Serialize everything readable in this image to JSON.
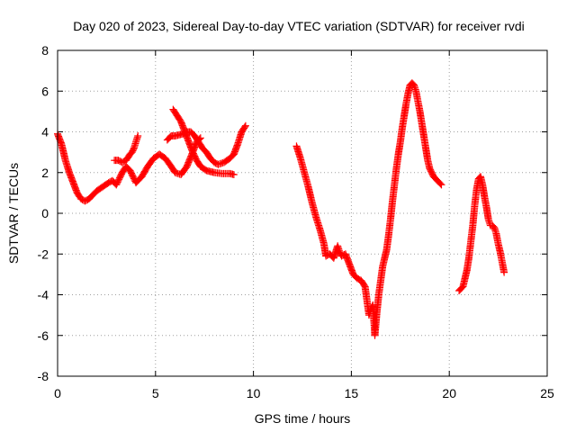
{
  "chart_data": {
    "type": "scatter",
    "title": "Day 020 of 2023, Sidereal Day-to-day VTEC variation (SDTVAR) for receiver rvdi",
    "xlabel": "GPS time / hours",
    "ylabel": "SDTVAR / TECUs",
    "xlim": [
      0,
      25
    ],
    "ylim": [
      -8,
      8
    ],
    "xticks": [
      "0",
      "5",
      "10",
      "15",
      "20",
      "25"
    ],
    "yticks": [
      "-8",
      "-6",
      "-4",
      "-2",
      "0",
      "2",
      "4",
      "6",
      "8"
    ],
    "grid": true,
    "marker_color": "#ff0000",
    "series": [
      {
        "points": [
          [
            0,
            3.9
          ],
          [
            0.2,
            3.4
          ],
          [
            0.4,
            2.6
          ],
          [
            0.6,
            2.0
          ],
          [
            0.8,
            1.5
          ],
          [
            1.0,
            1.0
          ],
          [
            1.2,
            0.7
          ],
          [
            1.4,
            0.6
          ],
          [
            1.6,
            0.7
          ],
          [
            1.8,
            0.9
          ],
          [
            2.0,
            1.1
          ],
          [
            2.3,
            1.3
          ],
          [
            2.6,
            1.5
          ],
          [
            2.8,
            1.6
          ],
          [
            3.0,
            1.4
          ],
          [
            3.1,
            1.6
          ],
          [
            3.3,
            2.0
          ],
          [
            3.5,
            2.3
          ],
          [
            3.7,
            2.1
          ],
          [
            3.9,
            1.7
          ],
          [
            4.0,
            1.5
          ],
          [
            4.3,
            1.8
          ],
          [
            4.6,
            2.3
          ],
          [
            4.9,
            2.7
          ],
          [
            5.2,
            2.9
          ],
          [
            5.5,
            2.7
          ],
          [
            5.8,
            2.3
          ],
          [
            6.0,
            2.0
          ],
          [
            6.3,
            1.9
          ],
          [
            6.6,
            2.3
          ],
          [
            6.9,
            3.0
          ],
          [
            7.1,
            3.5
          ],
          [
            7.3,
            3.7
          ]
        ]
      },
      {
        "points": [
          [
            2.9,
            2.6
          ],
          [
            3.1,
            2.6
          ],
          [
            3.3,
            2.5
          ],
          [
            3.5,
            2.6
          ],
          [
            3.7,
            2.9
          ],
          [
            3.8,
            3.0
          ],
          [
            3.9,
            3.2
          ],
          [
            4.0,
            3.5
          ],
          [
            4.1,
            3.8
          ]
        ]
      },
      {
        "points": [
          [
            5.9,
            5.1
          ],
          [
            6.1,
            4.8
          ],
          [
            6.3,
            4.5
          ],
          [
            6.5,
            4.0
          ],
          [
            6.7,
            3.5
          ],
          [
            6.9,
            3.0
          ],
          [
            7.1,
            2.6
          ],
          [
            7.3,
            2.3
          ],
          [
            7.6,
            2.1
          ],
          [
            8.0,
            2.0
          ],
          [
            8.4,
            1.95
          ],
          [
            8.8,
            1.95
          ],
          [
            9.0,
            1.9
          ]
        ]
      },
      {
        "points": [
          [
            5.6,
            3.6
          ],
          [
            5.8,
            3.8
          ],
          [
            6.0,
            3.8
          ],
          [
            6.2,
            3.85
          ],
          [
            6.4,
            3.9
          ],
          [
            6.6,
            4.0
          ],
          [
            6.8,
            4.0
          ],
          [
            7.0,
            3.8
          ],
          [
            7.2,
            3.5
          ],
          [
            7.4,
            3.2
          ],
          [
            7.6,
            3.0
          ],
          [
            7.8,
            2.7
          ],
          [
            8.0,
            2.5
          ],
          [
            8.2,
            2.4
          ],
          [
            8.5,
            2.5
          ],
          [
            8.8,
            2.7
          ],
          [
            9.0,
            2.9
          ],
          [
            9.2,
            3.4
          ],
          [
            9.4,
            4.0
          ],
          [
            9.6,
            4.3
          ]
        ]
      },
      {
        "points": [
          [
            12.2,
            3.3
          ],
          [
            12.4,
            2.7
          ],
          [
            12.6,
            2.0
          ],
          [
            12.8,
            1.3
          ],
          [
            13.0,
            0.5
          ],
          [
            13.2,
            -0.2
          ],
          [
            13.4,
            -0.8
          ],
          [
            13.6,
            -1.5
          ],
          [
            13.7,
            -2.1
          ],
          [
            13.9,
            -2.0
          ],
          [
            14.1,
            -2.2
          ],
          [
            14.3,
            -1.6
          ],
          [
            14.4,
            -1.9
          ],
          [
            14.5,
            -2.1
          ],
          [
            14.7,
            -2.0
          ],
          [
            14.9,
            -2.5
          ],
          [
            15.1,
            -3.0
          ],
          [
            15.3,
            -3.2
          ],
          [
            15.5,
            -3.3
          ],
          [
            15.7,
            -3.6
          ],
          [
            15.8,
            -4.3
          ],
          [
            15.9,
            -5.0
          ],
          [
            16.0,
            -4.7
          ],
          [
            16.1,
            -4.5
          ],
          [
            16.2,
            -6.0
          ],
          [
            16.3,
            -4.9
          ],
          [
            16.4,
            -4.0
          ],
          [
            16.5,
            -3.3
          ],
          [
            16.6,
            -2.6
          ],
          [
            16.8,
            -1.8
          ],
          [
            16.9,
            -1.1
          ],
          [
            17.0,
            -0.3
          ],
          [
            17.1,
            0.6
          ],
          [
            17.2,
            1.4
          ],
          [
            17.3,
            2.2
          ],
          [
            17.4,
            2.9
          ],
          [
            17.5,
            3.5
          ],
          [
            17.6,
            4.2
          ],
          [
            17.7,
            4.8
          ],
          [
            17.8,
            5.4
          ],
          [
            17.9,
            5.9
          ],
          [
            18.0,
            6.3
          ],
          [
            18.1,
            6.4
          ],
          [
            18.2,
            6.3
          ],
          [
            18.3,
            6.0
          ],
          [
            18.4,
            5.5
          ],
          [
            18.5,
            5.0
          ],
          [
            18.6,
            4.4
          ],
          [
            18.7,
            3.8
          ],
          [
            18.8,
            3.2
          ],
          [
            18.9,
            2.6
          ],
          [
            19.0,
            2.2
          ],
          [
            19.2,
            1.8
          ],
          [
            19.4,
            1.6
          ],
          [
            19.6,
            1.4
          ]
        ]
      },
      {
        "points": [
          [
            20.5,
            -3.8
          ],
          [
            20.7,
            -3.6
          ],
          [
            20.9,
            -2.8
          ],
          [
            21.0,
            -2.2
          ],
          [
            21.1,
            -1.4
          ],
          [
            21.2,
            -0.6
          ],
          [
            21.3,
            0.4
          ],
          [
            21.4,
            1.2
          ],
          [
            21.5,
            1.7
          ],
          [
            21.6,
            1.8
          ],
          [
            21.7,
            1.4
          ],
          [
            21.8,
            0.8
          ],
          [
            21.9,
            0.3
          ],
          [
            22.0,
            -0.3
          ],
          [
            22.1,
            -0.6
          ],
          [
            22.2,
            -0.6
          ],
          [
            22.3,
            -0.7
          ],
          [
            22.4,
            -1.0
          ],
          [
            22.5,
            -1.5
          ],
          [
            22.6,
            -1.9
          ],
          [
            22.7,
            -2.4
          ],
          [
            22.8,
            -2.9
          ]
        ]
      }
    ]
  }
}
